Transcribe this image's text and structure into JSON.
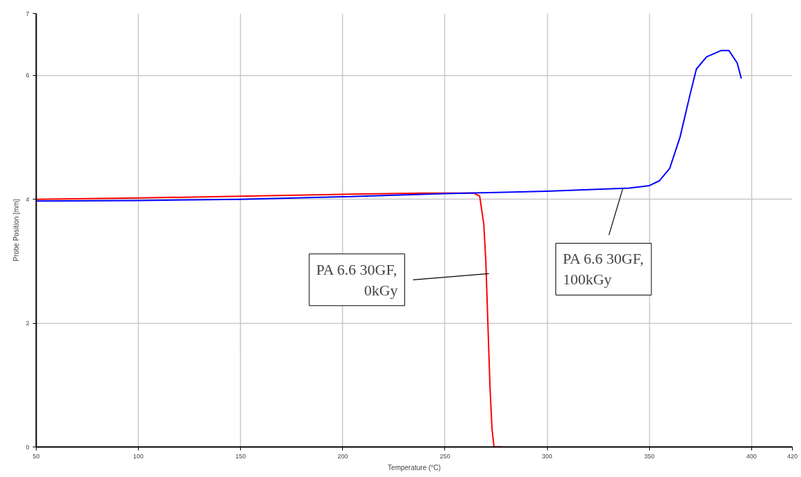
{
  "chart_data": {
    "type": "line",
    "xlabel": "Temperature (°C)",
    "ylabel": "Probe Position [mm]",
    "xlim": [
      50,
      420
    ],
    "ylim": [
      0,
      7
    ],
    "xticks": [
      50,
      100,
      150,
      200,
      250,
      300,
      350,
      400,
      420
    ],
    "yticks": [
      0,
      2,
      4,
      6,
      7
    ],
    "grid": true,
    "marker": "none",
    "line_style": "solid",
    "series": [
      {
        "color": "#ff0000",
        "x": [
          50,
          100,
          150,
          200,
          240,
          264,
          267,
          269,
          270,
          271,
          272,
          273,
          274,
          278
        ],
        "values": [
          4.0,
          4.02,
          4.05,
          4.08,
          4.1,
          4.1,
          4.05,
          3.6,
          3.0,
          2.0,
          1.0,
          0.3,
          0,
          0
        ]
      },
      {
        "color": "#0000ff",
        "x": [
          50,
          100,
          150,
          200,
          250,
          300,
          340,
          350,
          355,
          360,
          365,
          370,
          373,
          378,
          385,
          389,
          393,
          395
        ],
        "values": [
          3.97,
          3.98,
          4.0,
          4.04,
          4.09,
          4.13,
          4.18,
          4.22,
          4.3,
          4.5,
          5.0,
          5.7,
          6.1,
          6.3,
          6.4,
          6.4,
          6.2,
          5.95
        ]
      }
    ],
    "annotations": [
      {
        "text": "PA 6.6 30GF,\n0kGy",
        "x": 271.5,
        "y": 2.8
      },
      {
        "text": "PA 6.6 30GF,\n100kGy",
        "x": 337,
        "y": 4.17
      }
    ]
  }
}
